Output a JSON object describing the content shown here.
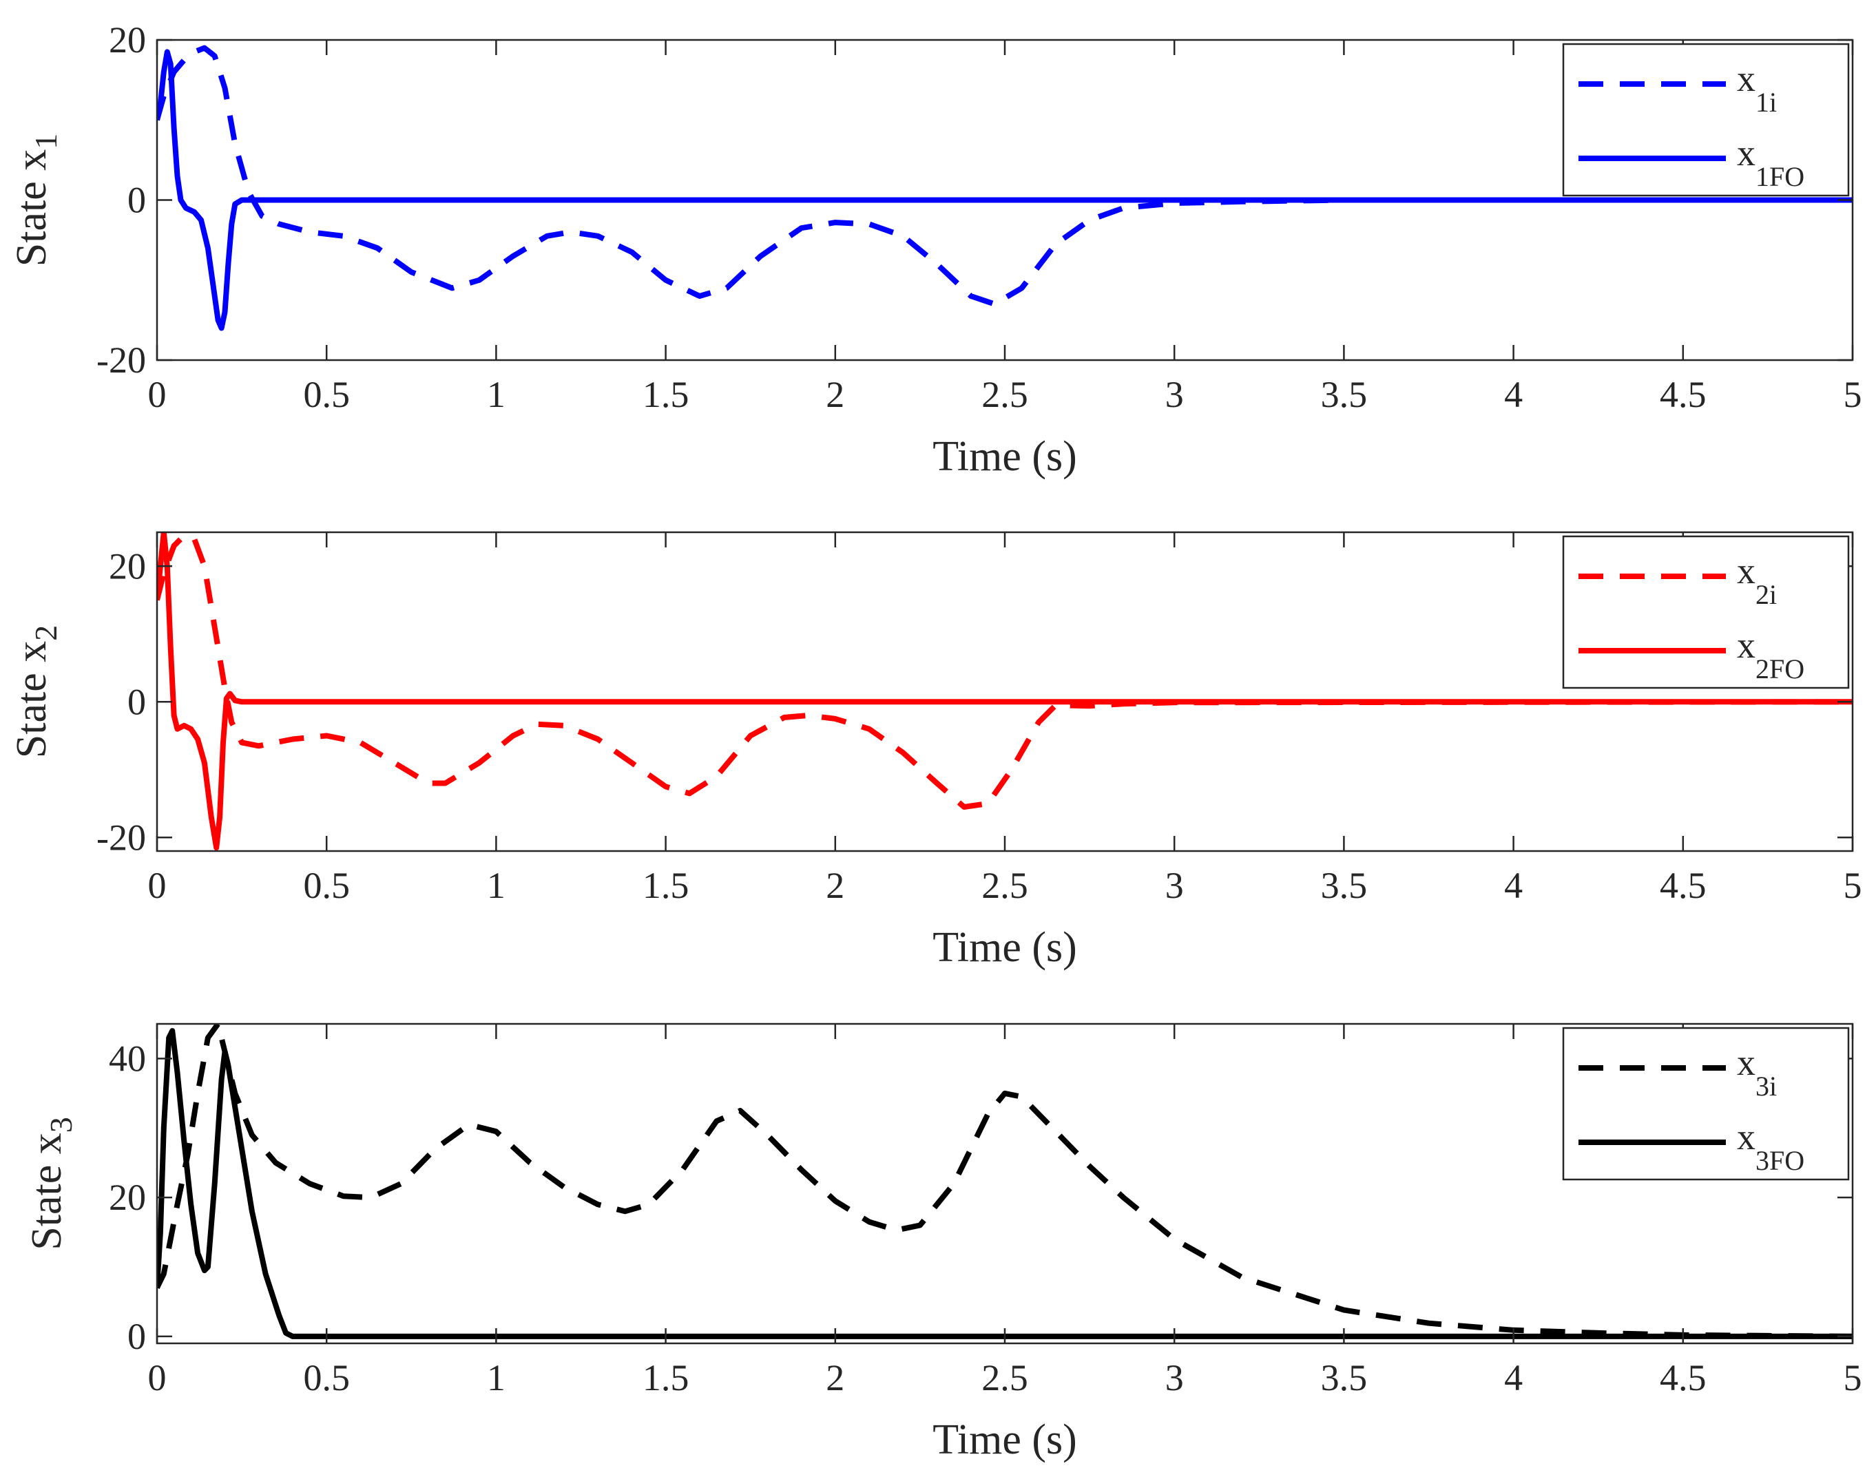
{
  "chart_data": [
    {
      "type": "line",
      "xlabel": "Time (s)",
      "ylabel": {
        "base": "State x",
        "sub": "1"
      },
      "xlim": [
        0,
        5
      ],
      "ylim": [
        -20,
        20
      ],
      "xticks": [
        0,
        0.5,
        1,
        1.5,
        2,
        2.5,
        3,
        3.5,
        4,
        4.5,
        5
      ],
      "xtick_labels": [
        "0",
        "0.5",
        "1",
        "1.5",
        "2",
        "2.5",
        "3",
        "3.5",
        "4",
        "4.5",
        "5"
      ],
      "yticks": [
        -20,
        0,
        20
      ],
      "ytick_labels": [
        "-20",
        "0",
        "20"
      ],
      "legend_position": "top-right",
      "series": [
        {
          "name": "x_1i",
          "label_base": "x",
          "label_sub": "1i",
          "color": "#0000ff",
          "style": "dashed",
          "points": [
            [
              0,
              10
            ],
            [
              0.02,
              13
            ],
            [
              0.05,
              16
            ],
            [
              0.08,
              17.5
            ],
            [
              0.11,
              18.5
            ],
            [
              0.14,
              19
            ],
            [
              0.17,
              18
            ],
            [
              0.2,
              14
            ],
            [
              0.23,
              7
            ],
            [
              0.27,
              1
            ],
            [
              0.31,
              -2
            ],
            [
              0.36,
              -3
            ],
            [
              0.45,
              -4
            ],
            [
              0.55,
              -4.5
            ],
            [
              0.65,
              -6
            ],
            [
              0.75,
              -9
            ],
            [
              0.87,
              -11
            ],
            [
              0.95,
              -10
            ],
            [
              1.05,
              -7
            ],
            [
              1.15,
              -4.5
            ],
            [
              1.22,
              -4
            ],
            [
              1.3,
              -4.5
            ],
            [
              1.4,
              -6.5
            ],
            [
              1.5,
              -10
            ],
            [
              1.6,
              -12
            ],
            [
              1.68,
              -11
            ],
            [
              1.78,
              -7
            ],
            [
              1.9,
              -3.5
            ],
            [
              2.0,
              -2.8
            ],
            [
              2.1,
              -3
            ],
            [
              2.2,
              -4.5
            ],
            [
              2.3,
              -8
            ],
            [
              2.4,
              -12
            ],
            [
              2.47,
              -13
            ],
            [
              2.55,
              -11
            ],
            [
              2.65,
              -5.5
            ],
            [
              2.75,
              -2.5
            ],
            [
              2.85,
              -1
            ],
            [
              3.0,
              -0.4
            ],
            [
              3.2,
              -0.2
            ],
            [
              3.5,
              0
            ],
            [
              5,
              0
            ]
          ]
        },
        {
          "name": "x_1FO",
          "label_base": "x",
          "label_sub": "1FO",
          "color": "#0000ff",
          "style": "solid",
          "points": [
            [
              0,
              10
            ],
            [
              0.01,
              12
            ],
            [
              0.02,
              16
            ],
            [
              0.03,
              18.5
            ],
            [
              0.04,
              17
            ],
            [
              0.05,
              9
            ],
            [
              0.06,
              3
            ],
            [
              0.07,
              0
            ],
            [
              0.085,
              -1
            ],
            [
              0.11,
              -1.5
            ],
            [
              0.13,
              -2.5
            ],
            [
              0.15,
              -6
            ],
            [
              0.17,
              -12
            ],
            [
              0.18,
              -15
            ],
            [
              0.19,
              -16
            ],
            [
              0.2,
              -14
            ],
            [
              0.21,
              -8
            ],
            [
              0.22,
              -3
            ],
            [
              0.23,
              -0.5
            ],
            [
              0.25,
              0
            ],
            [
              5,
              0
            ]
          ]
        }
      ]
    },
    {
      "type": "line",
      "xlabel": "Time (s)",
      "ylabel": {
        "base": "State x",
        "sub": "2"
      },
      "xlim": [
        0,
        5
      ],
      "ylim": [
        -22,
        25
      ],
      "xticks": [
        0,
        0.5,
        1,
        1.5,
        2,
        2.5,
        3,
        3.5,
        4,
        4.5,
        5
      ],
      "xtick_labels": [
        "0",
        "0.5",
        "1",
        "1.5",
        "2",
        "2.5",
        "3",
        "3.5",
        "4",
        "4.5",
        "5"
      ],
      "yticks": [
        -20,
        0,
        20
      ],
      "ytick_labels": [
        "-20",
        "0",
        "20"
      ],
      "legend_position": "top-right",
      "series": [
        {
          "name": "x_2i",
          "label_base": "x",
          "label_sub": "2i",
          "color": "#ff0000",
          "style": "dashed",
          "points": [
            [
              0,
              15
            ],
            [
              0.02,
              19
            ],
            [
              0.05,
              23
            ],
            [
              0.08,
              24.5
            ],
            [
              0.11,
              24
            ],
            [
              0.14,
              20
            ],
            [
              0.17,
              11
            ],
            [
              0.2,
              2
            ],
            [
              0.22,
              -3
            ],
            [
              0.25,
              -6
            ],
            [
              0.3,
              -6.5
            ],
            [
              0.4,
              -5.5
            ],
            [
              0.5,
              -5
            ],
            [
              0.6,
              -6
            ],
            [
              0.7,
              -9
            ],
            [
              0.8,
              -12
            ],
            [
              0.85,
              -12
            ],
            [
              0.95,
              -9
            ],
            [
              1.05,
              -5
            ],
            [
              1.12,
              -3.3
            ],
            [
              1.2,
              -3.5
            ],
            [
              1.3,
              -5.5
            ],
            [
              1.4,
              -9
            ],
            [
              1.5,
              -12.5
            ],
            [
              1.57,
              -13.5
            ],
            [
              1.65,
              -11
            ],
            [
              1.75,
              -5
            ],
            [
              1.85,
              -2.3
            ],
            [
              1.92,
              -2
            ],
            [
              2.0,
              -2.5
            ],
            [
              2.1,
              -4
            ],
            [
              2.2,
              -7.5
            ],
            [
              2.3,
              -12
            ],
            [
              2.38,
              -15.5
            ],
            [
              2.45,
              -15
            ],
            [
              2.52,
              -10
            ],
            [
              2.6,
              -3
            ],
            [
              2.65,
              -0.5
            ],
            [
              2.75,
              -0.6
            ],
            [
              2.85,
              -0.3
            ],
            [
              3.0,
              -0.1
            ],
            [
              5,
              0
            ]
          ]
        },
        {
          "name": "x_2FO",
          "label_base": "x",
          "label_sub": "2FO",
          "color": "#ff0000",
          "style": "solid",
          "points": [
            [
              0,
              15
            ],
            [
              0.01,
              20
            ],
            [
              0.02,
              25
            ],
            [
              0.03,
              20
            ],
            [
              0.04,
              8
            ],
            [
              0.05,
              -2
            ],
            [
              0.06,
              -4
            ],
            [
              0.08,
              -3.5
            ],
            [
              0.1,
              -4
            ],
            [
              0.12,
              -5.5
            ],
            [
              0.14,
              -9
            ],
            [
              0.16,
              -17
            ],
            [
              0.175,
              -21.5
            ],
            [
              0.185,
              -17
            ],
            [
              0.195,
              -6
            ],
            [
              0.205,
              0.5
            ],
            [
              0.215,
              1.2
            ],
            [
              0.23,
              0.2
            ],
            [
              0.25,
              0
            ],
            [
              5,
              0
            ]
          ]
        }
      ]
    },
    {
      "type": "line",
      "xlabel": "Time (s)",
      "ylabel": {
        "base": "State x",
        "sub": "3"
      },
      "xlim": [
        0,
        5
      ],
      "ylim": [
        -1,
        45
      ],
      "xticks": [
        0,
        0.5,
        1,
        1.5,
        2,
        2.5,
        3,
        3.5,
        4,
        4.5,
        5
      ],
      "xtick_labels": [
        "0",
        "0.5",
        "1",
        "1.5",
        "2",
        "2.5",
        "3",
        "3.5",
        "4",
        "4.5",
        "5"
      ],
      "yticks": [
        0,
        20,
        40
      ],
      "ytick_labels": [
        "0",
        "20",
        "40"
      ],
      "legend_position": "top-right",
      "series": [
        {
          "name": "x_3i",
          "label_base": "x",
          "label_sub": "3i",
          "color": "#000000",
          "style": "dashed",
          "points": [
            [
              0,
              7
            ],
            [
              0.02,
              9
            ],
            [
              0.04,
              14
            ],
            [
              0.06,
              19
            ],
            [
              0.09,
              26
            ],
            [
              0.12,
              35
            ],
            [
              0.15,
              43
            ],
            [
              0.18,
              45
            ],
            [
              0.2,
              41
            ],
            [
              0.23,
              35
            ],
            [
              0.28,
              29
            ],
            [
              0.35,
              25
            ],
            [
              0.45,
              22
            ],
            [
              0.55,
              20.2
            ],
            [
              0.63,
              20
            ],
            [
              0.72,
              22
            ],
            [
              0.82,
              27
            ],
            [
              0.92,
              30.5
            ],
            [
              1.0,
              29.5
            ],
            [
              1.1,
              25
            ],
            [
              1.2,
              21.5
            ],
            [
              1.3,
              19
            ],
            [
              1.38,
              18
            ],
            [
              1.45,
              19
            ],
            [
              1.55,
              24
            ],
            [
              1.65,
              31
            ],
            [
              1.72,
              32.5
            ],
            [
              1.8,
              29
            ],
            [
              1.9,
              24
            ],
            [
              2.0,
              19.5
            ],
            [
              2.1,
              16.5
            ],
            [
              2.18,
              15.3
            ],
            [
              2.25,
              16
            ],
            [
              2.35,
              22
            ],
            [
              2.45,
              32
            ],
            [
              2.5,
              35
            ],
            [
              2.55,
              34.5
            ],
            [
              2.65,
              29.5
            ],
            [
              2.75,
              24.5
            ],
            [
              2.85,
              20
            ],
            [
              3.0,
              14
            ],
            [
              3.2,
              8.5
            ],
            [
              3.5,
              3.8
            ],
            [
              3.75,
              1.9
            ],
            [
              4.0,
              0.9
            ],
            [
              4.25,
              0.5
            ],
            [
              4.5,
              0.2
            ],
            [
              4.75,
              0.1
            ],
            [
              5.0,
              0
            ]
          ]
        },
        {
          "name": "x_3FO",
          "label_base": "x",
          "label_sub": "3FO",
          "color": "#000000",
          "style": "solid",
          "points": [
            [
              0,
              7
            ],
            [
              0.01,
              15
            ],
            [
              0.02,
              30
            ],
            [
              0.035,
              43
            ],
            [
              0.045,
              44
            ],
            [
              0.06,
              38
            ],
            [
              0.08,
              28
            ],
            [
              0.1,
              19
            ],
            [
              0.12,
              12
            ],
            [
              0.14,
              9.5
            ],
            [
              0.15,
              10
            ],
            [
              0.17,
              22
            ],
            [
              0.19,
              37
            ],
            [
              0.2,
              41
            ],
            [
              0.21,
              39
            ],
            [
              0.24,
              30
            ],
            [
              0.28,
              18
            ],
            [
              0.32,
              9
            ],
            [
              0.36,
              3
            ],
            [
              0.38,
              0.5
            ],
            [
              0.4,
              0
            ],
            [
              5,
              0
            ]
          ]
        }
      ]
    }
  ]
}
